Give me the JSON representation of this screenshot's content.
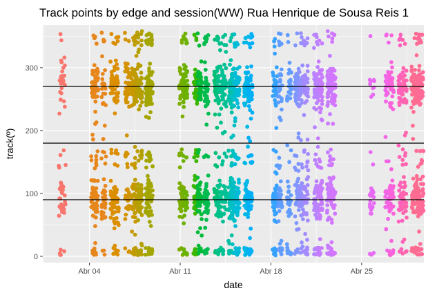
{
  "chart_data": {
    "type": "scatter",
    "title": "Track points by edge and session(WW) Rua Henrique de Sousa Reis 1",
    "xlabel": "date",
    "ylabel": "track(º)",
    "x_ticks": [
      {
        "label": "Abr 04",
        "day": 4
      },
      {
        "label": "Abr 11",
        "day": 11
      },
      {
        "label": "Abr 18",
        "day": 18
      },
      {
        "label": "Abr 25",
        "day": 25
      }
    ],
    "y_ticks": [
      0,
      100,
      200,
      300
    ],
    "xlim_days": [
      0.4,
      29.8
    ],
    "ylim": [
      -10,
      368
    ],
    "reference_lines": [
      90,
      180,
      270
    ],
    "grid": true,
    "legend": "none",
    "series": [
      {
        "day": 1.8,
        "color": "#f8766d",
        "density": 0.5
      },
      {
        "day": 2.0,
        "color": "#f8766d",
        "density": 0.5
      },
      {
        "day": 4.3,
        "color": "#e7861b",
        "density": 0.9
      },
      {
        "day": 4.5,
        "color": "#e7861b",
        "density": 0.9
      },
      {
        "day": 5.1,
        "color": "#e7861b",
        "density": 0.9
      },
      {
        "day": 5.8,
        "color": "#db8e00",
        "density": 1.0
      },
      {
        "day": 6.1,
        "color": "#db8e00",
        "density": 1.0
      },
      {
        "day": 6.9,
        "color": "#d39200",
        "density": 0.9
      },
      {
        "day": 7.4,
        "color": "#c99800",
        "density": 1.0
      },
      {
        "day": 7.6,
        "color": "#be9c00",
        "density": 1.4
      },
      {
        "day": 7.9,
        "color": "#b3a000",
        "density": 1.4
      },
      {
        "day": 8.5,
        "color": "#a3a500",
        "density": 1.3
      },
      {
        "day": 8.7,
        "color": "#a3a500",
        "density": 1.3
      },
      {
        "day": 11.1,
        "color": "#7cae00",
        "density": 1.2
      },
      {
        "day": 11.4,
        "color": "#6bb100",
        "density": 1.2
      },
      {
        "day": 12.2,
        "color": "#39b600",
        "density": 1.1
      },
      {
        "day": 12.5,
        "color": "#00ba38",
        "density": 1.2
      },
      {
        "day": 13.0,
        "color": "#00bb4e",
        "density": 1.2
      },
      {
        "day": 13.8,
        "color": "#00bf74",
        "density": 1.0
      },
      {
        "day": 14.0,
        "color": "#00c08b",
        "density": 1.0
      },
      {
        "day": 14.4,
        "color": "#00c094",
        "density": 1.0
      },
      {
        "day": 14.9,
        "color": "#00c1a3",
        "density": 1.3
      },
      {
        "day": 15.1,
        "color": "#00bfc4",
        "density": 1.4
      },
      {
        "day": 15.4,
        "color": "#00bcd8",
        "density": 1.4
      },
      {
        "day": 16.1,
        "color": "#00b8e7",
        "density": 1.3
      },
      {
        "day": 16.4,
        "color": "#00b0f6",
        "density": 1.3
      },
      {
        "day": 18.3,
        "color": "#35a2ff",
        "density": 1.2
      },
      {
        "day": 18.7,
        "color": "#619cff",
        "density": 1.0
      },
      {
        "day": 19.4,
        "color": "#619cff",
        "density": 0.9
      },
      {
        "day": 20.0,
        "color": "#7f96ff",
        "density": 1.2
      },
      {
        "day": 20.3,
        "color": "#9590ff",
        "density": 1.2
      },
      {
        "day": 20.7,
        "color": "#a58aff",
        "density": 1.2
      },
      {
        "day": 21.5,
        "color": "#b983ff",
        "density": 1.4
      },
      {
        "day": 21.8,
        "color": "#c77cff",
        "density": 1.4
      },
      {
        "day": 22.5,
        "color": "#c77cff",
        "density": 1.3
      },
      {
        "day": 22.8,
        "color": "#d376ff",
        "density": 1.3
      },
      {
        "day": 25.8,
        "color": "#e76bf3",
        "density": 0.6
      },
      {
        "day": 27.0,
        "color": "#f265e7",
        "density": 0.8
      },
      {
        "day": 27.3,
        "color": "#fa62db",
        "density": 0.9
      },
      {
        "day": 28.0,
        "color": "#ff62bc",
        "density": 0.9
      },
      {
        "day": 28.3,
        "color": "#ff65ae",
        "density": 0.9
      },
      {
        "day": 29.0,
        "color": "#ff6c91",
        "density": 1.2
      },
      {
        "day": 29.3,
        "color": "#ff6c91",
        "density": 1.4
      },
      {
        "day": 29.6,
        "color": "#ff6a98",
        "density": 1.1
      }
    ]
  }
}
